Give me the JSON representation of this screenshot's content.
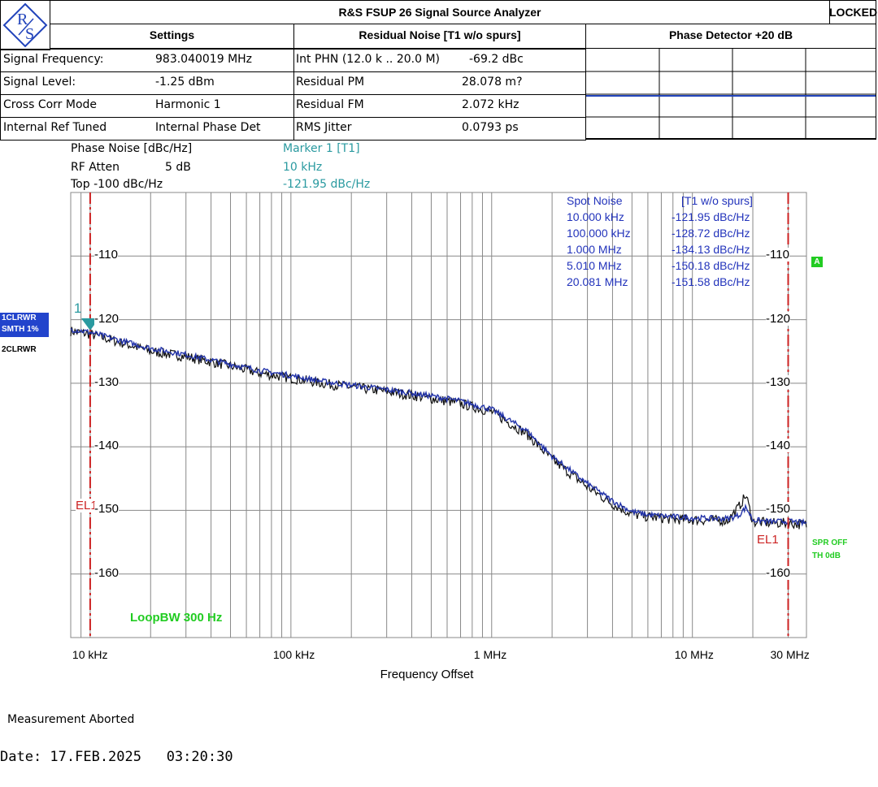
{
  "header": {
    "title": "R&S FSUP 26 Signal Source Analyzer",
    "status": "LOCKED",
    "logo_text": "RS",
    "settings_title": "Settings",
    "residual_title": "Residual Noise [T1 w/o spurs]",
    "phase_det_title": "Phase Detector +20 dB"
  },
  "settings": [
    {
      "label": "Signal Frequency:",
      "value": "983.040019 MHz"
    },
    {
      "label": "Signal Level:",
      "value": "-1.25 dBm"
    },
    {
      "label": "Cross Corr Mode",
      "value": "Harmonic 1"
    },
    {
      "label": "Internal Ref Tuned",
      "value": "Internal Phase Det"
    }
  ],
  "residual": [
    {
      "label": "Int PHN (12.0 k .. 20.0 M)",
      "value": "-69.2 dBc"
    },
    {
      "label": "Residual PM",
      "value": "28.078 m?"
    },
    {
      "label": "Residual FM",
      "value": "2.072 kHz"
    },
    {
      "label": "RMS Jitter",
      "value": "0.0793 ps"
    }
  ],
  "info": {
    "phase_noise": "Phase Noise [dBc/Hz]",
    "rf_atten_label": "RF Atten",
    "rf_atten_value": "5 dB",
    "top": "Top  -100 dBc/Hz",
    "marker_title": "Marker 1 [T1]",
    "marker_freq": "10 kHz",
    "marker_value": "-121.95 dBc/Hz"
  },
  "trace_labels": {
    "t1": "1CLRWR",
    "t1_smth": "SMTH 1%",
    "t2": "2CLRWR",
    "marker_num": "1",
    "a_badge": "A",
    "spr": "SPR OFF",
    "th": "TH 0dB",
    "loop_bw": "LoopBW 300 Hz",
    "el_left": "EL1",
    "el_right": "EL1"
  },
  "spot_noise": {
    "title_left": "Spot Noise",
    "title_right": "[T1 w/o spurs]",
    "rows": [
      {
        "freq": "10.000 kHz",
        "value": "-121.95 dBc/Hz"
      },
      {
        "freq": "100.000 kHz",
        "value": "-128.72 dBc/Hz"
      },
      {
        "freq": "1.000 MHz",
        "value": "-134.13 dBc/Hz"
      },
      {
        "freq": "5.010 MHz",
        "value": "-150.18 dBc/Hz"
      },
      {
        "freq": "20.081 MHz",
        "value": "-151.58 dBc/Hz"
      }
    ]
  },
  "footer": {
    "status": "Measurement Aborted",
    "date": "Date: 17.FEB.2025   03:20:30"
  },
  "chart_data": {
    "type": "line",
    "xlabel": "Frequency Offset",
    "ylabel": "",
    "x_scale": "log",
    "xlim_hz": [
      8000,
      37000
    ],
    "xlim": [
      8000,
      37000000
    ],
    "ylim": [
      -170,
      -100
    ],
    "grid": true,
    "x_ticks": [
      {
        "value": 10000,
        "label": "10 kHz"
      },
      {
        "value": 100000,
        "label": "100 kHz"
      },
      {
        "value": 1000000,
        "label": "1 MHz"
      },
      {
        "value": 10000000,
        "label": "10 MHz"
      },
      {
        "value": 30000000,
        "label": "30 MHz"
      }
    ],
    "y_ticks": [
      {
        "value": -110,
        "label": "-110"
      },
      {
        "value": -120,
        "label": "-120"
      },
      {
        "value": -130,
        "label": "-130"
      },
      {
        "value": -140,
        "label": "-140"
      },
      {
        "value": -150,
        "label": "-150"
      },
      {
        "value": -160,
        "label": "-160"
      }
    ],
    "el_line_hz": [
      10000,
      30000000
    ],
    "marker": {
      "x": 10000,
      "y": -121.95
    },
    "series": [
      {
        "name": "1CLRWR",
        "color": "#2233aa",
        "x": [
          8000,
          10000,
          15000,
          20000,
          30000,
          50000,
          70000,
          100000,
          150000,
          200000,
          300000,
          500000,
          700000,
          1000000,
          1500000,
          2000000,
          3000000,
          4000000,
          5000000,
          6000000,
          8000000,
          10000000,
          15000000,
          17000000,
          18500000,
          20000000,
          25000000,
          30000000,
          37000000
        ],
        "y": [
          -121.5,
          -122.0,
          -123.5,
          -124.5,
          -125.5,
          -127.0,
          -128.0,
          -128.8,
          -129.8,
          -130.3,
          -131.0,
          -132.0,
          -132.8,
          -134.1,
          -137.5,
          -141.5,
          -145.8,
          -148.5,
          -150.2,
          -150.7,
          -151.0,
          -151.2,
          -151.3,
          -150.8,
          -149.5,
          -151.5,
          -151.8,
          -151.7,
          -152.0
        ]
      },
      {
        "name": "2CLRWR",
        "color": "#111111",
        "x": [
          8000,
          10000,
          15000,
          20000,
          30000,
          50000,
          70000,
          100000,
          150000,
          200000,
          300000,
          500000,
          700000,
          1000000,
          1500000,
          2000000,
          3000000,
          4000000,
          5000000,
          6000000,
          8000000,
          10000000,
          15000000,
          17000000,
          18500000,
          20000000,
          25000000,
          30000000,
          37000000
        ],
        "y": [
          -121.8,
          -122.3,
          -123.8,
          -125.0,
          -125.8,
          -127.3,
          -128.4,
          -129.2,
          -130.1,
          -130.6,
          -131.3,
          -132.4,
          -133.2,
          -134.5,
          -138.0,
          -142.0,
          -146.3,
          -149.0,
          -150.6,
          -151.0,
          -151.4,
          -151.5,
          -151.6,
          -149.5,
          -147.6,
          -151.8,
          -152.0,
          -152.0,
          -152.3
        ]
      }
    ]
  }
}
